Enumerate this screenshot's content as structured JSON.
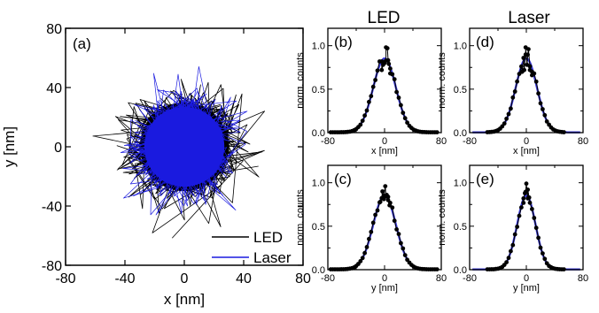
{
  "colors": {
    "led": "#000000",
    "laser": "#1a1adf",
    "fit": "#3a3ad8"
  },
  "column_titles": [
    "LED",
    "Laser"
  ],
  "chart_data": [
    {
      "id": "a",
      "type": "scatter",
      "panel_label": "(a)",
      "xlabel": "x [nm]",
      "ylabel": "y [nm]",
      "xlim": [
        -80,
        80
      ],
      "ylim": [
        -80,
        80
      ],
      "xticks": [
        "-80",
        "-40",
        "0",
        "40",
        "80"
      ],
      "yticks": [
        "-80",
        "-40",
        "0",
        "40",
        "80"
      ],
      "legend": {
        "placement": "bottom-right"
      },
      "series": [
        {
          "name": "LED",
          "color": "#000000",
          "radius_typ": 30,
          "radius_max": 62,
          "spread": 18,
          "n": 700
        },
        {
          "name": "Laser",
          "color": "#1a1adf",
          "radius_typ": 27,
          "radius_max": 55,
          "spread": 16,
          "n": 700
        }
      ]
    },
    {
      "id": "b",
      "type": "line",
      "panel_label": "(b)",
      "xlabel": "x [nm]",
      "ylabel": "norm. counts",
      "xlim": [
        -80,
        80
      ],
      "ylim": [
        0,
        1.2
      ],
      "xticks": [
        "-80",
        "0",
        "80"
      ],
      "yticks": [
        "0.0",
        "0.5",
        "1.0"
      ],
      "fit_sigma": 16,
      "peaks": [
        [
          -4,
          0.72
        ],
        [
          -2,
          0.78
        ],
        [
          0,
          0.8
        ],
        [
          2,
          0.98
        ],
        [
          4,
          0.97
        ],
        [
          6,
          0.79
        ],
        [
          8,
          0.68
        ]
      ],
      "x_min": -76,
      "x_max": 76
    },
    {
      "id": "c",
      "type": "line",
      "panel_label": "(c)",
      "xlabel": "y [nm]",
      "ylabel": "norm. counts",
      "xlim": [
        -80,
        80
      ],
      "ylim": [
        0,
        1.2
      ],
      "xticks": [
        "-80",
        "0",
        "80"
      ],
      "yticks": [
        "0.0",
        "0.5",
        "1.0"
      ],
      "fit_sigma": 16,
      "peaks": [
        [
          -6,
          0.78
        ],
        [
          -3,
          0.9
        ],
        [
          -1,
          0.85
        ],
        [
          1,
          0.96
        ],
        [
          3,
          0.86
        ],
        [
          5,
          0.8
        ],
        [
          7,
          0.74
        ]
      ],
      "x_min": -76,
      "x_max": 76
    },
    {
      "id": "d",
      "type": "line",
      "panel_label": "(d)",
      "xlabel": "x [nm]",
      "ylabel": "norm. counts",
      "xlim": [
        -80,
        80
      ],
      "ylim": [
        0,
        1.2
      ],
      "xticks": [
        "-80",
        "0",
        "80"
      ],
      "yticks": [
        "0.0",
        "0.5",
        "1.0"
      ],
      "fit_sigma": 15,
      "peaks": [
        [
          -6,
          0.7
        ],
        [
          -3,
          0.72
        ],
        [
          -1,
          0.98
        ],
        [
          1,
          0.78
        ],
        [
          3,
          0.96
        ],
        [
          5,
          0.72
        ],
        [
          8,
          0.66
        ]
      ],
      "x_min": -55,
      "x_max": 55
    },
    {
      "id": "e",
      "type": "line",
      "panel_label": "(e)",
      "xlabel": "y [nm]",
      "ylabel": "norm. counts",
      "xlim": [
        -80,
        80
      ],
      "ylim": [
        0,
        1.2
      ],
      "xticks": [
        "-80",
        "0",
        "80"
      ],
      "yticks": [
        "0.0",
        "0.5",
        "1.0"
      ],
      "fit_sigma": 13,
      "peaks": [
        [
          -4,
          0.82
        ],
        [
          -2,
          0.88
        ],
        [
          0,
          0.99
        ],
        [
          2,
          0.92
        ],
        [
          4,
          0.83
        ]
      ],
      "x_min": -55,
      "x_max": 55
    }
  ]
}
